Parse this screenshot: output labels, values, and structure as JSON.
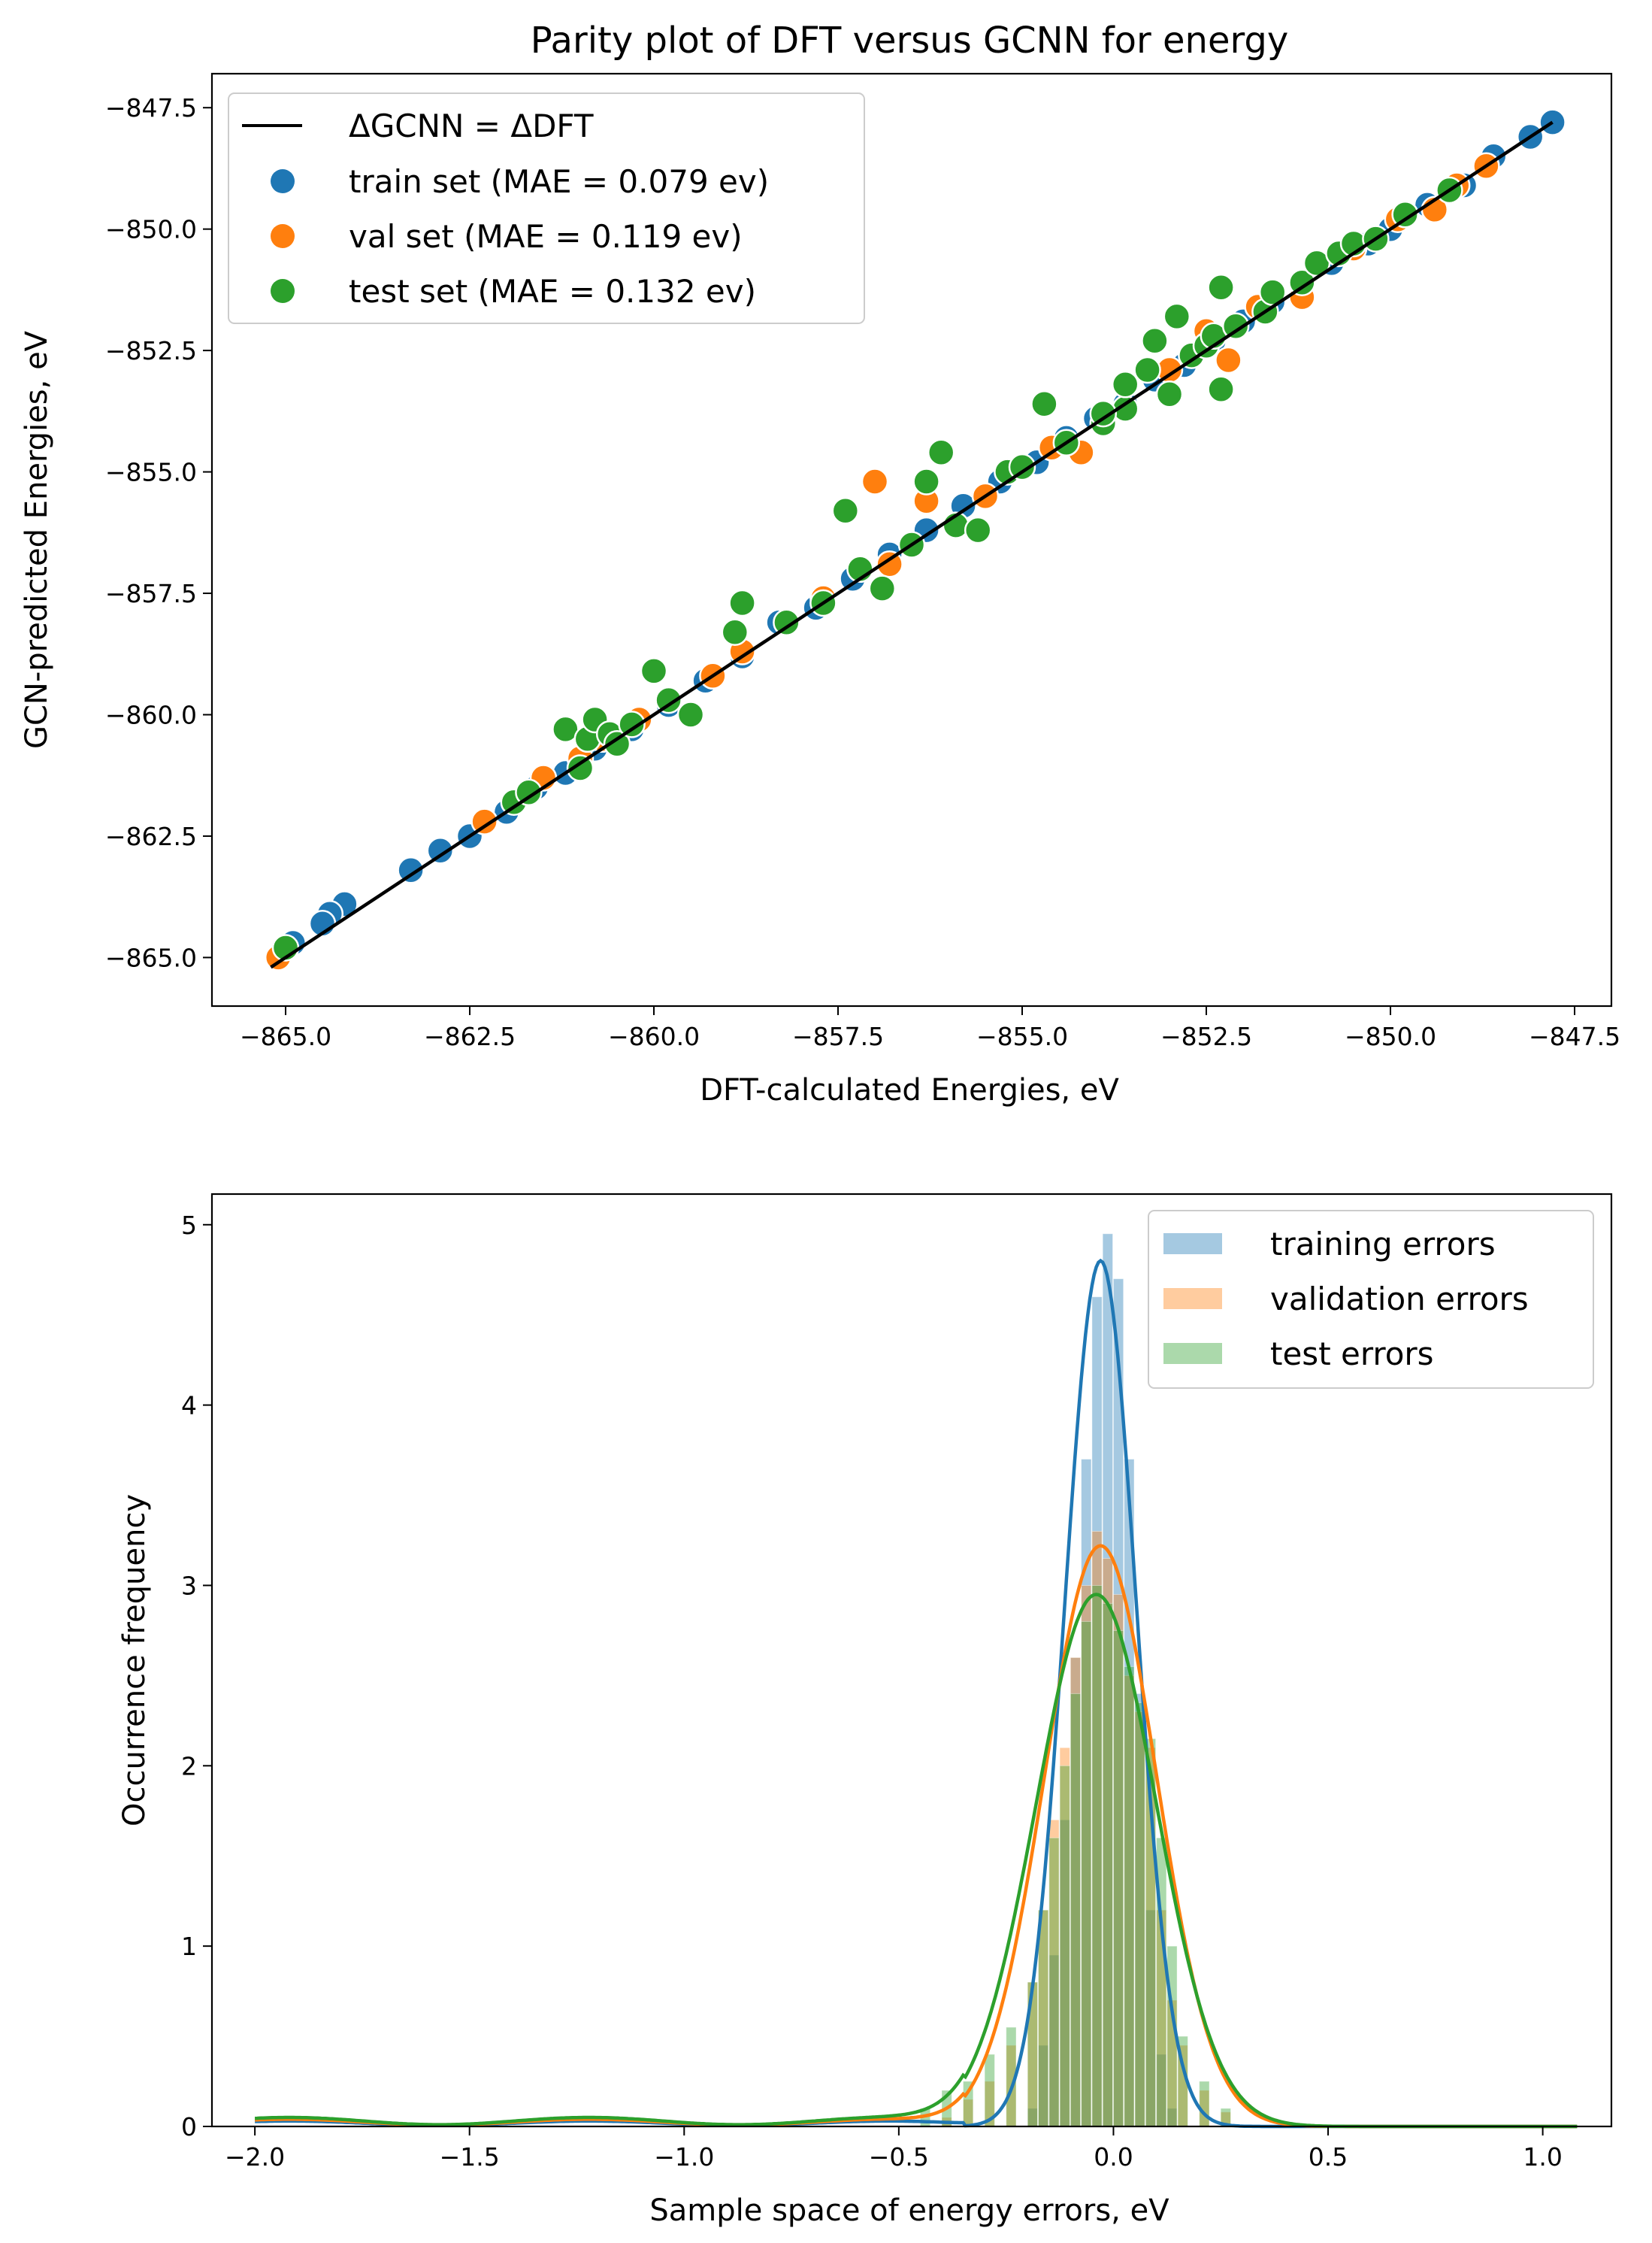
{
  "chart_data": [
    {
      "type": "scatter",
      "title": "Parity plot of DFT versus GCNN for energy",
      "xlabel": "DFT-calculated Energies, eV",
      "ylabel": "GCN-predicted Energies, eV",
      "xlim": [
        -866.0,
        -847.0
      ],
      "ylim": [
        -866.0,
        -846.8
      ],
      "xticks": [
        -865.0,
        -862.5,
        -860.0,
        -857.5,
        -855.0,
        -852.5,
        -850.0,
        -847.5
      ],
      "yticks": [
        -865.0,
        -862.5,
        -860.0,
        -857.5,
        -855.0,
        -852.5,
        -850.0,
        -847.5
      ],
      "xtick_labels": [
        "−865.0",
        "−862.5",
        "−860.0",
        "−857.5",
        "−855.0",
        "−852.5",
        "−850.0",
        "−847.5"
      ],
      "ytick_labels": [
        "−865.0",
        "−862.5",
        "−860.0",
        "−857.5",
        "−855.0",
        "−852.5",
        "−850.0",
        "−847.5"
      ],
      "legend_position": "top-left",
      "colors": {
        "train": "#1f77b4",
        "val": "#ff7f0e",
        "test": "#2ca02c",
        "line": "#000000"
      },
      "parity_line": {
        "label": "ΔGCNN = ΔDFT",
        "x": [
          -865.2,
          -847.8
        ],
        "y": [
          -865.2,
          -847.8
        ]
      },
      "series": [
        {
          "name": "train set (MAE = 0.079 ev)",
          "key": "train",
          "points": [
            [
              -847.8,
              -847.8
            ],
            [
              -848.1,
              -848.1
            ],
            [
              -848.6,
              -848.5
            ],
            [
              -849.0,
              -849.1
            ],
            [
              -849.5,
              -849.5
            ],
            [
              -850.0,
              -850.0
            ],
            [
              -850.3,
              -850.3
            ],
            [
              -850.8,
              -850.7
            ],
            [
              -851.2,
              -851.2
            ],
            [
              -851.6,
              -851.5
            ],
            [
              -852.0,
              -851.9
            ],
            [
              -852.4,
              -852.3
            ],
            [
              -852.8,
              -852.8
            ],
            [
              -853.2,
              -853.1
            ],
            [
              -853.6,
              -853.6
            ],
            [
              -854.0,
              -853.9
            ],
            [
              -854.4,
              -854.3
            ],
            [
              -854.8,
              -854.8
            ],
            [
              -855.3,
              -855.2
            ],
            [
              -855.8,
              -855.7
            ],
            [
              -856.3,
              -856.2
            ],
            [
              -856.8,
              -856.7
            ],
            [
              -857.3,
              -857.2
            ],
            [
              -857.8,
              -857.8
            ],
            [
              -858.3,
              -858.1
            ],
            [
              -858.8,
              -858.8
            ],
            [
              -859.3,
              -859.3
            ],
            [
              -859.8,
              -859.8
            ],
            [
              -860.3,
              -860.3
            ],
            [
              -860.8,
              -860.7
            ],
            [
              -861.2,
              -861.2
            ],
            [
              -861.6,
              -861.5
            ],
            [
              -862.0,
              -862.0
            ],
            [
              -862.5,
              -862.5
            ],
            [
              -862.9,
              -862.8
            ],
            [
              -863.3,
              -863.2
            ],
            [
              -864.2,
              -863.9
            ],
            [
              -864.4,
              -864.1
            ],
            [
              -864.5,
              -864.3
            ],
            [
              -864.9,
              -864.7
            ]
          ]
        },
        {
          "name": "val set (MAE = 0.119 ev)",
          "key": "val",
          "points": [
            [
              -865.1,
              -865.0
            ],
            [
              -862.3,
              -862.2
            ],
            [
              -861.5,
              -861.3
            ],
            [
              -860.7,
              -860.5
            ],
            [
              -860.2,
              -860.1
            ],
            [
              -859.2,
              -859.2
            ],
            [
              -858.8,
              -858.7
            ],
            [
              -857.7,
              -857.6
            ],
            [
              -857.0,
              -855.2
            ],
            [
              -856.3,
              -855.6
            ],
            [
              -855.5,
              -855.5
            ],
            [
              -854.2,
              -854.6
            ],
            [
              -853.9,
              -854.0
            ],
            [
              -853.0,
              -852.9
            ],
            [
              -852.5,
              -852.1
            ],
            [
              -851.8,
              -851.6
            ],
            [
              -851.2,
              -851.4
            ],
            [
              -850.5,
              -850.4
            ],
            [
              -849.9,
              -849.8
            ],
            [
              -849.1,
              -849.1
            ],
            [
              -848.7,
              -848.7
            ],
            [
              -849.4,
              -849.6
            ],
            [
              -852.2,
              -852.7
            ],
            [
              -854.6,
              -854.5
            ],
            [
              -856.8,
              -856.9
            ],
            [
              -861.0,
              -860.9
            ]
          ]
        },
        {
          "name": "test set (MAE = 0.132 ev)",
          "key": "test",
          "points": [
            [
              -865.0,
              -864.8
            ],
            [
              -861.9,
              -861.8
            ],
            [
              -861.7,
              -861.6
            ],
            [
              -861.2,
              -860.3
            ],
            [
              -861.0,
              -861.1
            ],
            [
              -860.9,
              -860.5
            ],
            [
              -860.8,
              -860.1
            ],
            [
              -860.6,
              -860.4
            ],
            [
              -860.5,
              -860.6
            ],
            [
              -860.3,
              -860.2
            ],
            [
              -860.0,
              -859.1
            ],
            [
              -859.8,
              -859.7
            ],
            [
              -859.5,
              -860.0
            ],
            [
              -858.9,
              -858.3
            ],
            [
              -858.8,
              -857.7
            ],
            [
              -858.2,
              -858.1
            ],
            [
              -857.7,
              -857.7
            ],
            [
              -857.4,
              -855.8
            ],
            [
              -857.2,
              -857.0
            ],
            [
              -856.9,
              -857.4
            ],
            [
              -856.5,
              -856.5
            ],
            [
              -856.3,
              -855.2
            ],
            [
              -856.1,
              -854.6
            ],
            [
              -855.9,
              -856.1
            ],
            [
              -855.6,
              -856.2
            ],
            [
              -855.2,
              -855.0
            ],
            [
              -855.0,
              -854.9
            ],
            [
              -854.7,
              -853.6
            ],
            [
              -854.4,
              -854.4
            ],
            [
              -853.9,
              -854.0
            ],
            [
              -853.6,
              -853.7
            ],
            [
              -853.6,
              -853.2
            ],
            [
              -853.3,
              -852.9
            ],
            [
              -853.2,
              -852.3
            ],
            [
              -853.0,
              -853.4
            ],
            [
              -852.9,
              -851.8
            ],
            [
              -852.7,
              -852.6
            ],
            [
              -852.5,
              -852.4
            ],
            [
              -852.4,
              -852.2
            ],
            [
              -852.3,
              -853.3
            ],
            [
              -852.3,
              -851.2
            ],
            [
              -852.1,
              -852.0
            ],
            [
              -851.7,
              -851.7
            ],
            [
              -851.6,
              -851.3
            ],
            [
              -851.2,
              -851.1
            ],
            [
              -851.0,
              -850.7
            ],
            [
              -850.7,
              -850.5
            ],
            [
              -850.5,
              -850.3
            ],
            [
              -850.2,
              -850.2
            ],
            [
              -849.8,
              -849.7
            ],
            [
              -849.2,
              -849.2
            ],
            [
              -853.9,
              -853.8
            ]
          ]
        }
      ]
    },
    {
      "type": "histogram",
      "xlabel": "Sample space of energy errors, eV",
      "ylabel": "Occurrence frequency",
      "xlim": [
        -2.1,
        1.16
      ],
      "ylim": [
        0,
        5.17
      ],
      "xticks": [
        -2.0,
        -1.5,
        -1.0,
        -0.5,
        0.0,
        0.5,
        1.0
      ],
      "yticks": [
        0,
        1,
        2,
        3,
        4,
        5
      ],
      "xtick_labels": [
        "−2.0",
        "−1.5",
        "−1.0",
        "−0.5",
        "0.0",
        "0.5",
        "1.0"
      ],
      "ytick_labels": [
        "0",
        "1",
        "2",
        "3",
        "4",
        "5"
      ],
      "legend_position": "top-right",
      "colors": {
        "train": "#1f77b4",
        "val": "#ff7f0e",
        "test": "#2ca02c"
      },
      "bin_width": 0.025,
      "series": [
        {
          "name": "training errors",
          "key": "train",
          "bins": [
            [
              -0.2,
              0.1
            ],
            [
              -0.175,
              0.45
            ],
            [
              -0.15,
              0.95
            ],
            [
              -0.125,
              1.7
            ],
            [
              -0.1,
              2.6
            ],
            [
              -0.075,
              3.7
            ],
            [
              -0.05,
              4.6
            ],
            [
              -0.025,
              4.95
            ],
            [
              0.0,
              4.7
            ],
            [
              0.025,
              3.7
            ],
            [
              0.05,
              2.4
            ],
            [
              0.075,
              1.2
            ],
            [
              0.1,
              0.4
            ],
            [
              0.125,
              0.1
            ]
          ],
          "kde": {
            "mu": -0.03,
            "sigma": 0.083,
            "peak": 4.8,
            "tail": 0.03
          }
        },
        {
          "name": "validation errors",
          "key": "val",
          "bins": [
            [
              -0.4,
              0.05
            ],
            [
              -0.35,
              0.15
            ],
            [
              -0.3,
              0.25
            ],
            [
              -0.25,
              0.45
            ],
            [
              -0.2,
              0.8
            ],
            [
              -0.175,
              1.2
            ],
            [
              -0.15,
              1.7
            ],
            [
              -0.125,
              2.1
            ],
            [
              -0.1,
              2.6
            ],
            [
              -0.075,
              3.0
            ],
            [
              -0.05,
              3.3
            ],
            [
              -0.025,
              3.15
            ],
            [
              0.0,
              2.95
            ],
            [
              0.025,
              2.5
            ],
            [
              0.05,
              2.3
            ],
            [
              0.075,
              2.1
            ],
            [
              0.1,
              1.2
            ],
            [
              0.125,
              0.7
            ],
            [
              0.15,
              0.45
            ],
            [
              0.2,
              0.2
            ],
            [
              0.25,
              0.08
            ]
          ],
          "kde": {
            "mu": -0.03,
            "sigma": 0.13,
            "peak": 3.22,
            "tail": 0.04
          }
        },
        {
          "name": "test errors",
          "key": "test",
          "bins": [
            [
              -0.45,
              0.1
            ],
            [
              -0.4,
              0.2
            ],
            [
              -0.35,
              0.25
            ],
            [
              -0.3,
              0.4
            ],
            [
              -0.25,
              0.55
            ],
            [
              -0.2,
              0.8
            ],
            [
              -0.175,
              1.2
            ],
            [
              -0.15,
              1.6
            ],
            [
              -0.125,
              2.0
            ],
            [
              -0.1,
              2.4
            ],
            [
              -0.075,
              2.8
            ],
            [
              -0.05,
              3.0
            ],
            [
              -0.025,
              2.9
            ],
            [
              0.0,
              2.75
            ],
            [
              0.025,
              2.55
            ],
            [
              0.05,
              2.35
            ],
            [
              0.075,
              2.15
            ],
            [
              0.1,
              1.6
            ],
            [
              0.125,
              1.0
            ],
            [
              0.15,
              0.5
            ],
            [
              0.2,
              0.25
            ],
            [
              0.25,
              0.1
            ]
          ],
          "kde": {
            "mu": -0.04,
            "sigma": 0.14,
            "peak": 2.95,
            "tail": 0.05
          }
        }
      ]
    }
  ]
}
